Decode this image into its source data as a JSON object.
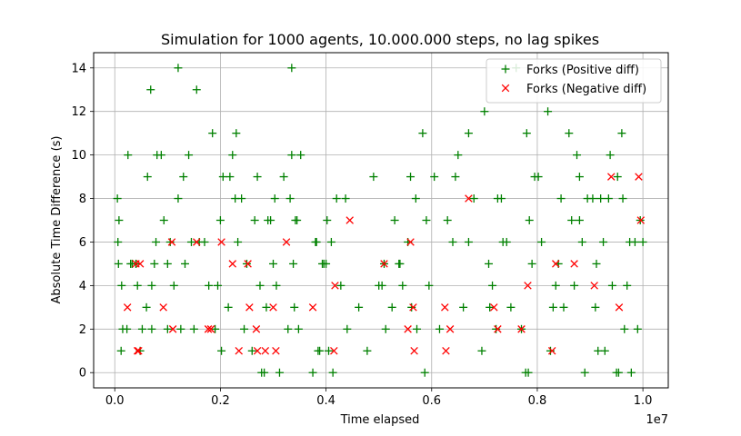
{
  "chart_data": {
    "type": "scatter",
    "title": "Simulation for 1000 agents, 10.000.000 steps, no lag spikes",
    "xlabel": "Time elapsed",
    "ylabel": "Absolute Time Difference (s)",
    "x_offset_label": "1e7",
    "xlim": [
      -400000,
      10480000
    ],
    "ylim": [
      -0.7,
      14.7
    ],
    "xticks": [
      0,
      2000000,
      4000000,
      6000000,
      8000000,
      10000000
    ],
    "xtick_labels": [
      "0.0",
      "0.2",
      "0.4",
      "0.6",
      "0.8",
      "1.0"
    ],
    "yticks": [
      0,
      2,
      4,
      6,
      8,
      10,
      12,
      14
    ],
    "ytick_labels": [
      "0",
      "2",
      "4",
      "6",
      "8",
      "10",
      "12",
      "14"
    ],
    "grid": true,
    "legend_position": "top-right",
    "series": [
      {
        "name": "Forks (Positive diff)",
        "marker": "+",
        "color": "#008000",
        "points": [
          [
            50000,
            8
          ],
          [
            80000,
            7
          ],
          [
            60000,
            6
          ],
          [
            70000,
            5
          ],
          [
            130000,
            4
          ],
          [
            150000,
            2
          ],
          [
            120000,
            1
          ],
          [
            230000,
            2
          ],
          [
            250000,
            10
          ],
          [
            300000,
            5
          ],
          [
            330000,
            5
          ],
          [
            400000,
            5
          ],
          [
            430000,
            4
          ],
          [
            480000,
            1
          ],
          [
            520000,
            2
          ],
          [
            600000,
            3
          ],
          [
            620000,
            9
          ],
          [
            680000,
            13
          ],
          [
            700000,
            2
          ],
          [
            700000,
            4
          ],
          [
            750000,
            5
          ],
          [
            780000,
            6
          ],
          [
            800000,
            10
          ],
          [
            880000,
            10
          ],
          [
            930000,
            7
          ],
          [
            1000000,
            5
          ],
          [
            1000000,
            2
          ],
          [
            1050000,
            6
          ],
          [
            1120000,
            4
          ],
          [
            1200000,
            14
          ],
          [
            1200000,
            8
          ],
          [
            1250000,
            2
          ],
          [
            1300000,
            9
          ],
          [
            1330000,
            5
          ],
          [
            1400000,
            10
          ],
          [
            1450000,
            6
          ],
          [
            1500000,
            2
          ],
          [
            1550000,
            13
          ],
          [
            1600000,
            6
          ],
          [
            1700000,
            6
          ],
          [
            1780000,
            4
          ],
          [
            1850000,
            11
          ],
          [
            1900000,
            2
          ],
          [
            1950000,
            4
          ],
          [
            2000000,
            7
          ],
          [
            2020000,
            1
          ],
          [
            2050000,
            9
          ],
          [
            2150000,
            3
          ],
          [
            2180000,
            9
          ],
          [
            2230000,
            10
          ],
          [
            2280000,
            8
          ],
          [
            2300000,
            11
          ],
          [
            2330000,
            6
          ],
          [
            2400000,
            8
          ],
          [
            2450000,
            2
          ],
          [
            2500000,
            5
          ],
          [
            2600000,
            1
          ],
          [
            2650000,
            7
          ],
          [
            2700000,
            9
          ],
          [
            2750000,
            4
          ],
          [
            2780000,
            0
          ],
          [
            2830000,
            0
          ],
          [
            2870000,
            3
          ],
          [
            2900000,
            7
          ],
          [
            2950000,
            7
          ],
          [
            3000000,
            5
          ],
          [
            3030000,
            8
          ],
          [
            3060000,
            4
          ],
          [
            3120000,
            0
          ],
          [
            3200000,
            9
          ],
          [
            3280000,
            2
          ],
          [
            3320000,
            8
          ],
          [
            3350000,
            14
          ],
          [
            3350000,
            10
          ],
          [
            3380000,
            5
          ],
          [
            3400000,
            3
          ],
          [
            3420000,
            7
          ],
          [
            3450000,
            7
          ],
          [
            3480000,
            2
          ],
          [
            3520000,
            10
          ],
          [
            3750000,
            0
          ],
          [
            3800000,
            6
          ],
          [
            3820000,
            6
          ],
          [
            3850000,
            1
          ],
          [
            3880000,
            1
          ],
          [
            3930000,
            5
          ],
          [
            3960000,
            5
          ],
          [
            4000000,
            5
          ],
          [
            4020000,
            7
          ],
          [
            4050000,
            1
          ],
          [
            4100000,
            6
          ],
          [
            4130000,
            0
          ],
          [
            4200000,
            8
          ],
          [
            4280000,
            4
          ],
          [
            4370000,
            8
          ],
          [
            4400000,
            2
          ],
          [
            4620000,
            3
          ],
          [
            4780000,
            1
          ],
          [
            4900000,
            9
          ],
          [
            5000000,
            4
          ],
          [
            5060000,
            4
          ],
          [
            5100000,
            5
          ],
          [
            5130000,
            2
          ],
          [
            5250000,
            3
          ],
          [
            5300000,
            7
          ],
          [
            5380000,
            5
          ],
          [
            5400000,
            5
          ],
          [
            5450000,
            4
          ],
          [
            5550000,
            6
          ],
          [
            5600000,
            9
          ],
          [
            5620000,
            3
          ],
          [
            5700000,
            8
          ],
          [
            5720000,
            2
          ],
          [
            5830000,
            11
          ],
          [
            5870000,
            0
          ],
          [
            5900000,
            7
          ],
          [
            5950000,
            4
          ],
          [
            6050000,
            9
          ],
          [
            6150000,
            2
          ],
          [
            6300000,
            7
          ],
          [
            6400000,
            6
          ],
          [
            6450000,
            9
          ],
          [
            6500000,
            10
          ],
          [
            6600000,
            3
          ],
          [
            6700000,
            11
          ],
          [
            6700000,
            6
          ],
          [
            6800000,
            8
          ],
          [
            6950000,
            1
          ],
          [
            7000000,
            12
          ],
          [
            7080000,
            5
          ],
          [
            7100000,
            3
          ],
          [
            7150000,
            4
          ],
          [
            7220000,
            2
          ],
          [
            7250000,
            8
          ],
          [
            7320000,
            8
          ],
          [
            7350000,
            6
          ],
          [
            7420000,
            6
          ],
          [
            7500000,
            3
          ],
          [
            7600000,
            14
          ],
          [
            7700000,
            2
          ],
          [
            7780000,
            0
          ],
          [
            7800000,
            11
          ],
          [
            7830000,
            0
          ],
          [
            7850000,
            7
          ],
          [
            7900000,
            5
          ],
          [
            7950000,
            9
          ],
          [
            8020000,
            9
          ],
          [
            8080000,
            6
          ],
          [
            8200000,
            12
          ],
          [
            8250000,
            1
          ],
          [
            8300000,
            3
          ],
          [
            8350000,
            4
          ],
          [
            8400000,
            5
          ],
          [
            8450000,
            8
          ],
          [
            8500000,
            3
          ],
          [
            8600000,
            11
          ],
          [
            8650000,
            7
          ],
          [
            8700000,
            4
          ],
          [
            8750000,
            10
          ],
          [
            8800000,
            9
          ],
          [
            8800000,
            7
          ],
          [
            8850000,
            6
          ],
          [
            8900000,
            0
          ],
          [
            8950000,
            8
          ],
          [
            9050000,
            8
          ],
          [
            9100000,
            3
          ],
          [
            9120000,
            5
          ],
          [
            9150000,
            1
          ],
          [
            9200000,
            8
          ],
          [
            9250000,
            6
          ],
          [
            9280000,
            1
          ],
          [
            9350000,
            8
          ],
          [
            9380000,
            10
          ],
          [
            9420000,
            4
          ],
          [
            9500000,
            0
          ],
          [
            9520000,
            9
          ],
          [
            9540000,
            0
          ],
          [
            9600000,
            11
          ],
          [
            9620000,
            8
          ],
          [
            9650000,
            2
          ],
          [
            9700000,
            4
          ],
          [
            9750000,
            6
          ],
          [
            9780000,
            0
          ],
          [
            9850000,
            6
          ],
          [
            9900000,
            2
          ],
          [
            9950000,
            7
          ],
          [
            10000000,
            6
          ]
        ]
      },
      {
        "name": "Forks (Negative diff)",
        "marker": "x",
        "color": "#ff0000",
        "points": [
          [
            240000,
            3
          ],
          [
            400000,
            5
          ],
          [
            430000,
            1
          ],
          [
            450000,
            1
          ],
          [
            480000,
            5
          ],
          [
            920000,
            3
          ],
          [
            1080000,
            6
          ],
          [
            1100000,
            2
          ],
          [
            1550000,
            6
          ],
          [
            1770000,
            2
          ],
          [
            1820000,
            2
          ],
          [
            2020000,
            6
          ],
          [
            2230000,
            5
          ],
          [
            2350000,
            1
          ],
          [
            2520000,
            5
          ],
          [
            2550000,
            3
          ],
          [
            2680000,
            2
          ],
          [
            2700000,
            1
          ],
          [
            2850000,
            1
          ],
          [
            3000000,
            3
          ],
          [
            3050000,
            1
          ],
          [
            3250000,
            6
          ],
          [
            3750000,
            3
          ],
          [
            4150000,
            1
          ],
          [
            4170000,
            4
          ],
          [
            4450000,
            7
          ],
          [
            5100000,
            5
          ],
          [
            5550000,
            2
          ],
          [
            5600000,
            6
          ],
          [
            5650000,
            3
          ],
          [
            5670000,
            1
          ],
          [
            6250000,
            3
          ],
          [
            6270000,
            1
          ],
          [
            6350000,
            2
          ],
          [
            6700000,
            8
          ],
          [
            7180000,
            3
          ],
          [
            7250000,
            2
          ],
          [
            7700000,
            2
          ],
          [
            7820000,
            4
          ],
          [
            8280000,
            1
          ],
          [
            8350000,
            5
          ],
          [
            8700000,
            5
          ],
          [
            9080000,
            4
          ],
          [
            9400000,
            9
          ],
          [
            9550000,
            3
          ],
          [
            9920000,
            9
          ],
          [
            9960000,
            7
          ]
        ]
      }
    ]
  }
}
